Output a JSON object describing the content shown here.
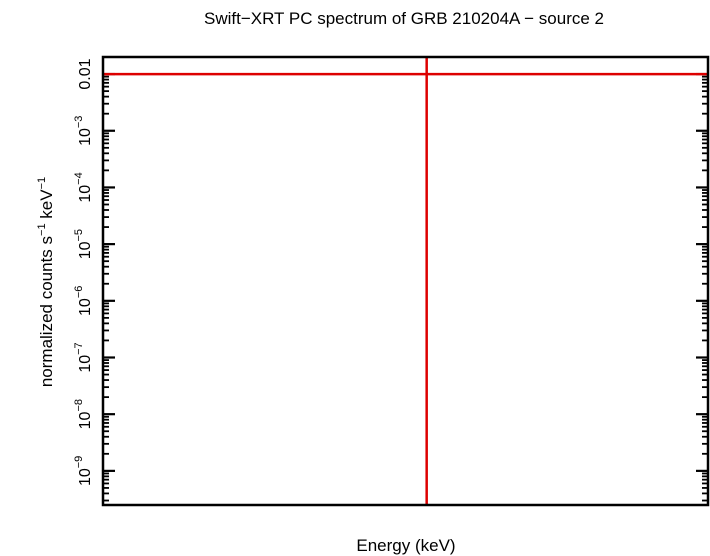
{
  "chart_data": {
    "type": "scatter",
    "title": "Swift−XRT PC spectrum of GRB 210204A − source 2",
    "xlabel": "Energy (keV)",
    "ylabel": {
      "base": "normalized counts s",
      "sup1": "−1",
      "mid": " keV",
      "sup2": "−1"
    },
    "y_scale": "log",
    "ylim": [
      2.5e-10,
      0.02
    ],
    "y_ticks": [
      {
        "value": 0.01,
        "label": "0.01",
        "mantissa": "",
        "exponent": ""
      },
      {
        "value": 0.001,
        "label": "",
        "mantissa": "10",
        "exponent": "−3"
      },
      {
        "value": 0.0001,
        "label": "",
        "mantissa": "10",
        "exponent": "−4"
      },
      {
        "value": 1e-05,
        "label": "",
        "mantissa": "10",
        "exponent": "−5"
      },
      {
        "value": 1e-06,
        "label": "",
        "mantissa": "10",
        "exponent": "−6"
      },
      {
        "value": 1e-07,
        "label": "",
        "mantissa": "10",
        "exponent": "−7"
      },
      {
        "value": 1e-08,
        "label": "",
        "mantissa": "10",
        "exponent": "−8"
      },
      {
        "value": 1e-09,
        "label": "",
        "mantissa": "10",
        "exponent": "−9"
      }
    ],
    "lines": [
      {
        "orientation": "horizontal",
        "value": 0.01,
        "color": "#dd0000"
      },
      {
        "orientation": "vertical",
        "fraction": 0.535,
        "color": "#dd0000"
      }
    ],
    "colors": {
      "frame": "#000000",
      "data": "#dd0000"
    }
  }
}
